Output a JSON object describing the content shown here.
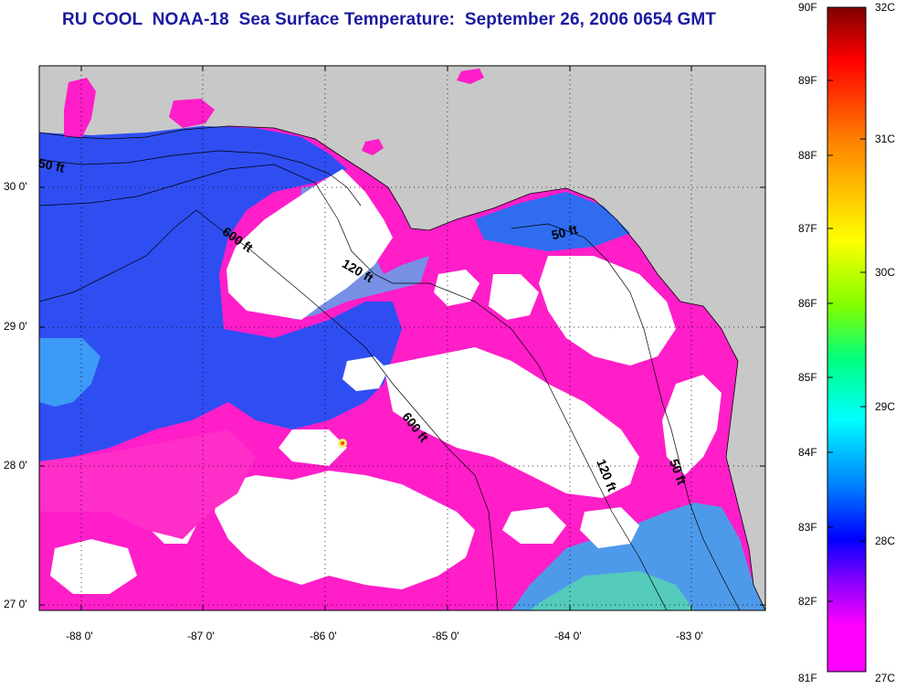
{
  "title": "RU COOL  NOAA-18  Sea Surface Temperature:  September 26, 2006 0654 GMT",
  "map": {
    "lat_ticks": [
      "30 0'",
      "29 0'",
      "28 0'",
      "27 0'"
    ],
    "lon_ticks": [
      "-88 0'",
      "-87 0'",
      "-86 0'",
      "-85 0'",
      "-84 0'",
      "-83 0'"
    ],
    "contour_labels": [
      "50 ft",
      "600 ft",
      "120 ft",
      "50 ft",
      "600 ft",
      "120 ft",
      "50 ft"
    ],
    "colors": {
      "land": "#c8c8c8",
      "cloud": "#ffffff",
      "cold": "#ff1ec8",
      "mid": "#2a4cf0",
      "warm": "#00e8f0"
    }
  },
  "colorbar": {
    "fahrenheit": [
      "90F",
      "89F",
      "88F",
      "87F",
      "86F",
      "85F",
      "84F",
      "83F",
      "82F",
      "81F"
    ],
    "celsius": [
      "32C",
      "31C",
      "30C",
      "29C",
      "28C",
      "27C"
    ],
    "gradient": [
      "#800000",
      "#ff0000",
      "#ff8000",
      "#ffff00",
      "#80ff00",
      "#00ff80",
      "#00ffff",
      "#0080ff",
      "#0000ff",
      "#8000ff",
      "#ff00ff"
    ]
  }
}
